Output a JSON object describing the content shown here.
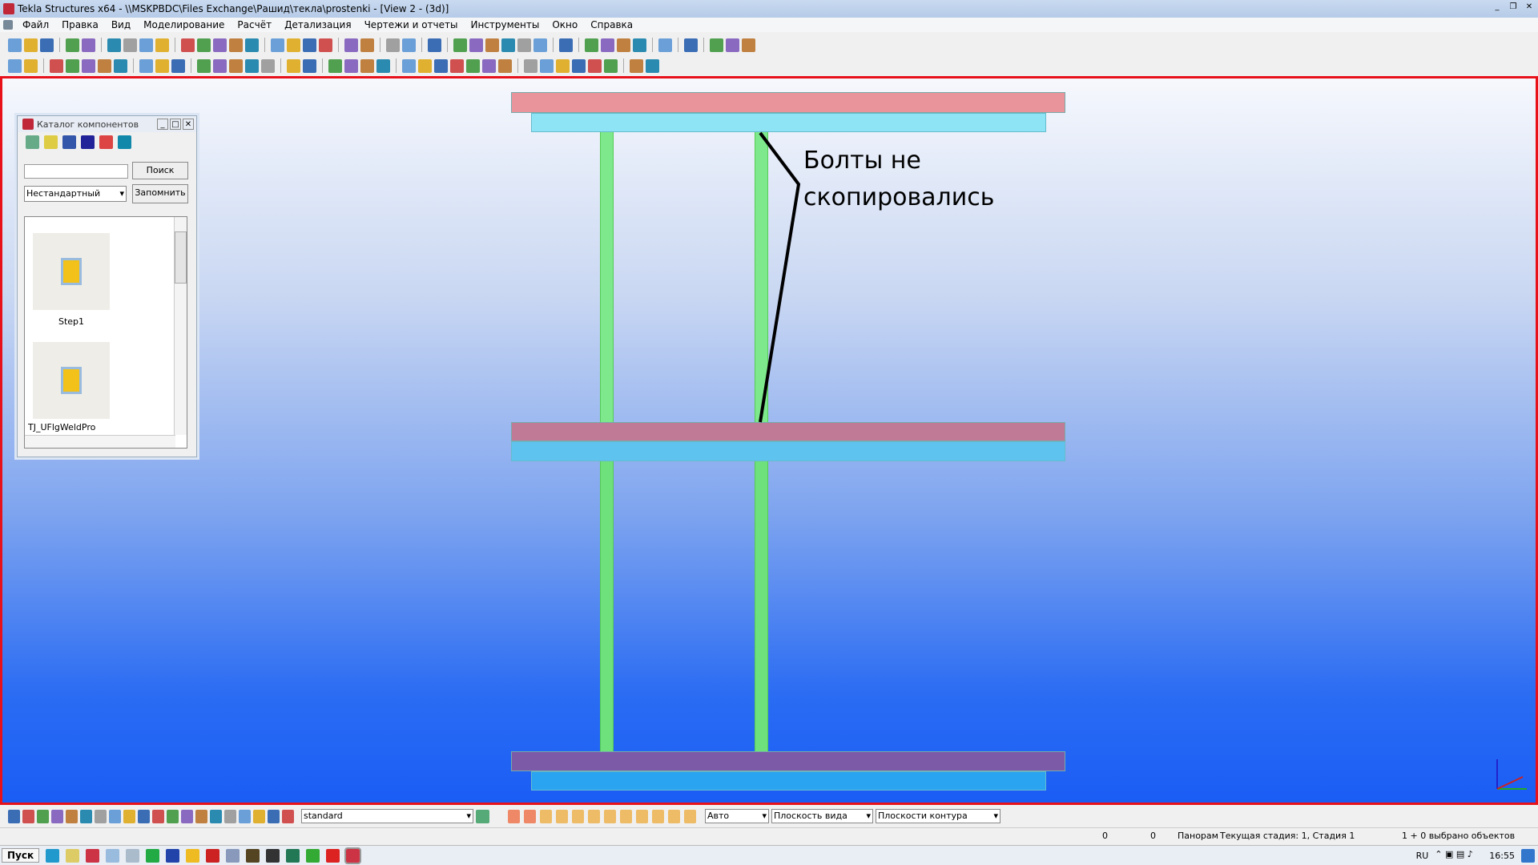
{
  "window": {
    "title": "Tekla Structures x64 - \\\\MSKPBDC\\Files Exchange\\Рашид\\тeкла\\prostenki  - [View 2 - (3d)]",
    "controls": [
      "_",
      "❐",
      "✕"
    ]
  },
  "menu": [
    "Файл",
    "Правка",
    "Вид",
    "Моделирование",
    "Расчёт",
    "Детализация",
    "Чертежи и отчеты",
    "Инструменты",
    "Окно",
    "Справка"
  ],
  "toolbar1": [
    "new-icon",
    "open-icon",
    "save-icon",
    "sep",
    "undo-icon",
    "redo-icon",
    "sep",
    "copy-icon",
    "paste-icon",
    "move-icon",
    "report-icon",
    "sep",
    "view-icon",
    "window-icon",
    "list-icon",
    "cut-icon",
    "select-icon",
    "sep",
    "part-icon",
    "plate-icon",
    "assembly-icon",
    "cast-icon",
    "sep",
    "snap-icon",
    "snap2-icon",
    "sep",
    "filter-icon",
    "filter2-icon",
    "sep",
    "query-icon",
    "sep",
    "grid-icon",
    "grid2-icon",
    "measure-icon",
    "angle-icon",
    "arc-icon",
    "bolt-icon",
    "sep",
    "pin-icon",
    "sep",
    "copy2-icon",
    "link-icon",
    "layers-icon",
    "table-icon",
    "sep",
    "catalog-icon",
    "sep",
    "tekla-icon",
    "sep",
    "more-icon",
    "folder-icon",
    "app-icon"
  ],
  "toolbar2": [
    "assembly-tool-icon",
    "fit-icon",
    "sep",
    "column-icon",
    "beam-icon",
    "polybeam-icon",
    "slab-icon",
    "pad-icon",
    "sep",
    "weld-icon",
    "bend-icon",
    "mesh-icon",
    "sep",
    "concrete-column-icon",
    "concrete-beam-icon",
    "curved-beam-icon",
    "panel-icon",
    "strip-icon",
    "sep",
    "rebar-icon",
    "strand-icon",
    "sep",
    "binoculars-icon",
    "profile-icon",
    "components-icon",
    "plate-tool-icon",
    "sep",
    "cut-line-icon",
    "polygon-cut-icon",
    "fitting-icon",
    "object-icon",
    "merge-icon",
    "split-icon",
    "combine-icon",
    "sep",
    "dim1-icon",
    "dim2-icon",
    "dim3-icon",
    "dim4-icon",
    "dim5-icon",
    "dim6-icon",
    "sep",
    "point-icon",
    "circle-icon"
  ],
  "colors": {
    "beam_flange": "#e9939a",
    "beam_web": "#8ee3f4",
    "column": "#7ee88c",
    "viewport_border": "#e8111a"
  },
  "annotation": {
    "line1": "Болты не",
    "line2": "скопировались"
  },
  "catalog": {
    "title": "Каталог компонентов",
    "search_value": "",
    "search_button": "Поиск",
    "filter_value": "Нестандартный",
    "remember_button": "Запомнить",
    "items": [
      {
        "label": "Step1"
      },
      {
        "label": "TJ_UFlgWeldPro"
      }
    ]
  },
  "view_toolbar": {
    "filter_value": "standard",
    "snap_mode": "Авто",
    "plane": "Плоскость вида",
    "contour": "Плоскости контура"
  },
  "status": {
    "x": "0",
    "y": "0",
    "mode": "Панорам",
    "phase": "Текущая стадия: 1, Стадия 1",
    "selected": "1 + 0 выбрано объектов"
  },
  "taskbar": {
    "start": "Пуск",
    "lang": "RU",
    "clock": "16:55"
  }
}
